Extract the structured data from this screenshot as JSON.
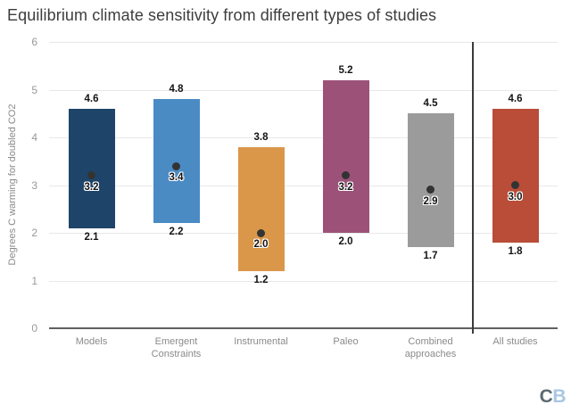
{
  "chart_data": {
    "type": "bar",
    "subtype": "floating-range-bars",
    "title": "Equilibrium climate sensitivity from different types of studies",
    "ylabel": "Degrees C warming for doubled CO2",
    "xlabel": "",
    "ylim": [
      0,
      6
    ],
    "yticks": [
      0,
      1,
      2,
      3,
      4,
      5,
      6
    ],
    "grid": true,
    "legend": "none",
    "categories": [
      "Models",
      "Emergent Constraints",
      "Instrumental",
      "Paleo",
      "Combined approaches",
      "All studies"
    ],
    "series": [
      {
        "category": "Models",
        "low": 2.1,
        "high": 4.6,
        "best": 3.2,
        "color": "#1e4569"
      },
      {
        "category": "Emergent Constraints",
        "low": 2.2,
        "high": 4.8,
        "best": 3.4,
        "color": "#4a8bc4"
      },
      {
        "category": "Instrumental",
        "low": 1.2,
        "high": 3.8,
        "best": 2.0,
        "color": "#da974a"
      },
      {
        "category": "Paleo",
        "low": 2.0,
        "high": 5.2,
        "best": 3.2,
        "color": "#9c5278"
      },
      {
        "category": "Combined approaches",
        "low": 1.7,
        "high": 4.5,
        "best": 2.9,
        "color": "#9b9b9b"
      },
      {
        "category": "All studies",
        "low": 1.8,
        "high": 4.6,
        "best": 3.0,
        "color": "#b94d38"
      }
    ],
    "separator_after_index": 4,
    "dot_color": "#333333",
    "annotation_note": "labels show high value above bar, low value below bar, best estimate beside dot"
  },
  "logo": {
    "letter_c": "C",
    "letter_b": "B",
    "c_color": "#5d6a74",
    "b_color": "#a9c7e0"
  }
}
